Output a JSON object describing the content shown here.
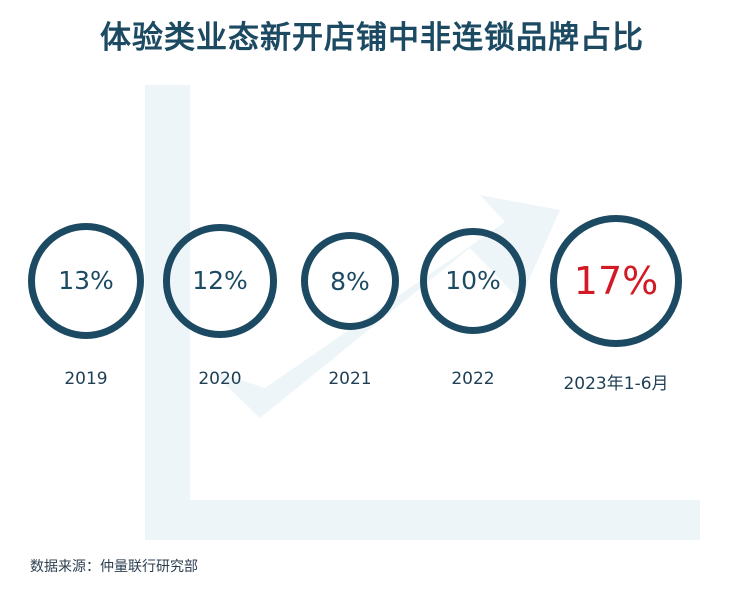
{
  "title": "体验类业态新开店铺中非连锁品牌占比",
  "source": "数据来源：仲量联行研究部",
  "colors": {
    "primary": "#1d4a63",
    "highlight": "#d11a23",
    "watermark": "#eef5f9"
  },
  "chart_data": {
    "type": "bar",
    "categories": [
      "2019",
      "2020",
      "2021",
      "2022",
      "2023年1-6月"
    ],
    "value_labels": [
      "13%",
      "12%",
      "8%",
      "10%",
      "17%"
    ],
    "values": [
      13,
      12,
      8,
      10,
      17
    ],
    "highlight_index": 4
  }
}
